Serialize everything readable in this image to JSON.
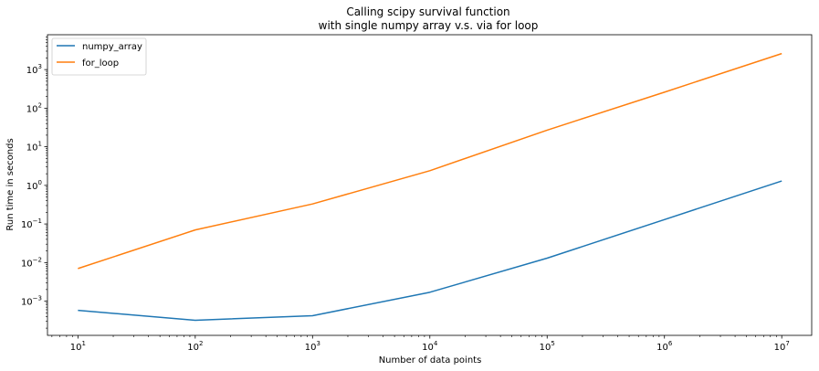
{
  "chart_data": {
    "type": "line",
    "title": [
      "Calling scipy survival function",
      "with single numpy array v.s. via for loop"
    ],
    "xlabel": "Number of data points",
    "ylabel": "Run time in seconds",
    "x_scale": "log",
    "y_scale": "log",
    "xlim": [
      5.5,
      18000000
    ],
    "ylim": [
      0.00013,
      8000
    ],
    "x": [
      10,
      100,
      1000,
      10000,
      100000,
      1000000,
      10000000
    ],
    "x_ticks": [
      {
        "value": 10,
        "base": "10",
        "exp": "1"
      },
      {
        "value": 100,
        "base": "10",
        "exp": "2"
      },
      {
        "value": 1000,
        "base": "10",
        "exp": "3"
      },
      {
        "value": 10000,
        "base": "10",
        "exp": "4"
      },
      {
        "value": 100000,
        "base": "10",
        "exp": "5"
      },
      {
        "value": 1000000,
        "base": "10",
        "exp": "6"
      },
      {
        "value": 10000000,
        "base": "10",
        "exp": "7"
      }
    ],
    "y_ticks": [
      {
        "value": 0.001,
        "base": "10",
        "exp": "−3"
      },
      {
        "value": 0.01,
        "base": "10",
        "exp": "−2"
      },
      {
        "value": 0.1,
        "base": "10",
        "exp": "−1"
      },
      {
        "value": 1,
        "base": "10",
        "exp": "0"
      },
      {
        "value": 10,
        "base": "10",
        "exp": "1"
      },
      {
        "value": 100,
        "base": "10",
        "exp": "2"
      },
      {
        "value": 1000,
        "base": "10",
        "exp": "3"
      }
    ],
    "series": [
      {
        "name": "numpy_array",
        "color": "#1f77b4",
        "values": [
          0.00058,
          0.00032,
          0.00042,
          0.0017,
          0.013,
          0.13,
          1.3
        ]
      },
      {
        "name": "for_loop",
        "color": "#ff7f0e",
        "values": [
          0.007,
          0.07,
          0.33,
          2.4,
          27,
          260,
          2600
        ]
      }
    ],
    "grid": false,
    "legend_position": "upper-left"
  }
}
